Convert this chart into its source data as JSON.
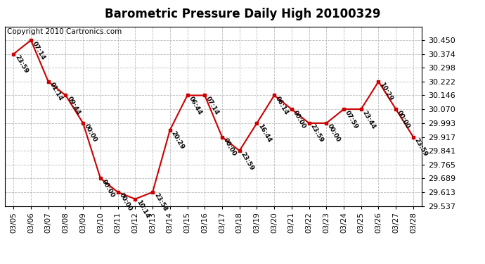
{
  "title": "Barometric Pressure Daily High 20100329",
  "copyright": "Copyright 2010 Cartronics.com",
  "dates": [
    "03/05",
    "03/06",
    "03/07",
    "03/08",
    "03/09",
    "03/10",
    "03/11",
    "03/12",
    "03/13",
    "03/14",
    "03/15",
    "03/16",
    "03/17",
    "03/18",
    "03/19",
    "03/20",
    "03/21",
    "03/22",
    "03/23",
    "03/24",
    "03/25",
    "03/26",
    "03/27",
    "03/28"
  ],
  "values": [
    30.374,
    30.45,
    30.222,
    30.146,
    29.993,
    29.689,
    29.613,
    29.575,
    29.613,
    29.955,
    30.146,
    30.146,
    29.917,
    29.841,
    29.993,
    30.146,
    30.07,
    29.993,
    29.993,
    30.07,
    30.07,
    30.222,
    30.07,
    29.917
  ],
  "time_labels": [
    "23:59",
    "07:14",
    "01:14",
    "09:44",
    "00:00",
    "00:00",
    "00:00",
    "10:14",
    "23:58",
    "20:29",
    "06:44",
    "07:14",
    "00:00",
    "23:59",
    "16:44",
    "06:14",
    "00:00",
    "23:59",
    "00:00",
    "07:59",
    "23:44",
    "10:29",
    "00:00",
    "23:59"
  ],
  "line_color": "#cc0000",
  "marker_color": "#cc0000",
  "bg_color": "#ffffff",
  "grid_color": "#bbbbbb",
  "ylim_min": 29.537,
  "ylim_max": 30.526,
  "yticks": [
    30.45,
    30.374,
    30.298,
    30.222,
    30.146,
    30.07,
    29.993,
    29.917,
    29.841,
    29.765,
    29.689,
    29.613,
    29.537
  ],
  "title_fontsize": 12,
  "copyright_fontsize": 7.5,
  "label_fontsize": 6.5
}
